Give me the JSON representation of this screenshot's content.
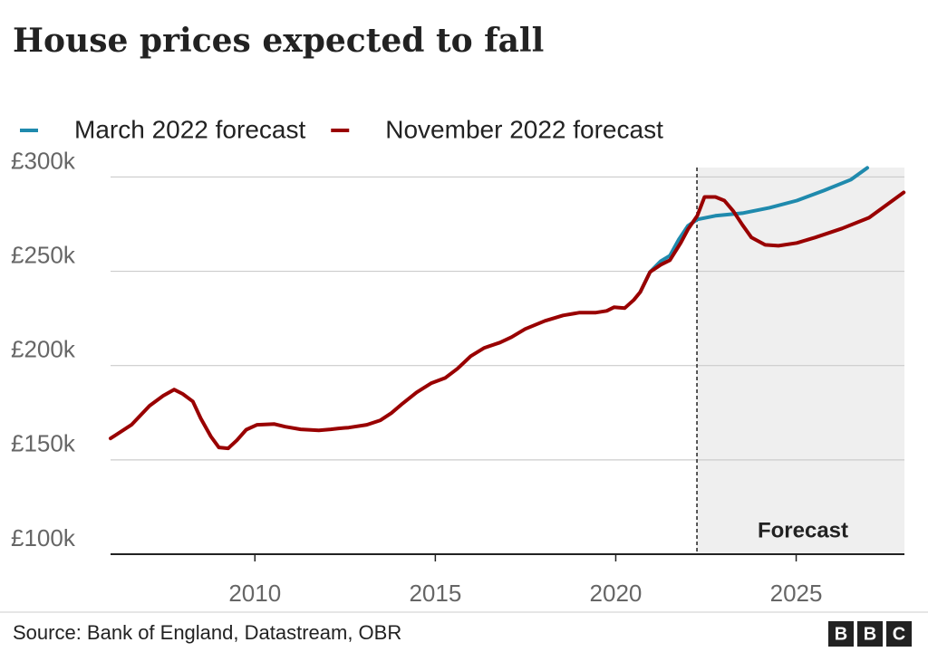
{
  "chart_data": {
    "type": "line",
    "title": "House prices expected to fall",
    "source": "Source: Bank of England, Datastream, OBR",
    "logo": [
      "B",
      "B",
      "C"
    ],
    "forecast_label": "Forecast",
    "forecast_start": 2022.25,
    "xlim": [
      2006,
      2028
    ],
    "xticks": [
      2010,
      2015,
      2020,
      2025
    ],
    "ylim": [
      100000,
      305000
    ],
    "yticks": [
      {
        "value": 100000,
        "label": "£100k"
      },
      {
        "value": 150000,
        "label": "£150k"
      },
      {
        "value": 200000,
        "label": "£200k"
      },
      {
        "value": 250000,
        "label": "£250k"
      },
      {
        "value": 300000,
        "label": "£300k"
      }
    ],
    "grid": true,
    "series": [
      {
        "name": "March 2022 forecast",
        "color": "#1f8aad",
        "x": [
          2020.68,
          2020.95,
          2021.25,
          2021.5,
          2021.75,
          2022.0,
          2022.26,
          2022.76,
          2023.51,
          2024.26,
          2025.02,
          2025.77,
          2026.52,
          2026.97
        ],
        "values": [
          239000,
          249600,
          255400,
          258300,
          266900,
          274100,
          277500,
          279400,
          280800,
          283700,
          287500,
          292800,
          298600,
          304800
        ]
      },
      {
        "name": "November 2022 forecast",
        "color": "#990000",
        "x": [
          2006.0,
          2006.58,
          2007.08,
          2007.46,
          2007.76,
          2008.0,
          2008.28,
          2008.5,
          2008.78,
          2009.0,
          2009.26,
          2009.5,
          2009.76,
          2010.06,
          2010.54,
          2010.84,
          2011.27,
          2011.77,
          2012.1,
          2012.32,
          2012.6,
          2013.1,
          2013.48,
          2013.78,
          2014.1,
          2014.48,
          2014.88,
          2015.28,
          2015.61,
          2015.98,
          2016.36,
          2016.79,
          2017.11,
          2017.49,
          2018.04,
          2018.54,
          2019.0,
          2019.45,
          2019.75,
          2019.95,
          2020.25,
          2020.5,
          2020.68,
          2020.95,
          2021.25,
          2021.5,
          2021.8,
          2022.0,
          2022.26,
          2022.46,
          2022.76,
          2023.01,
          2023.26,
          2023.51,
          2023.76,
          2024.14,
          2024.51,
          2025.02,
          2025.52,
          2026.27,
          2027.02,
          2027.98
        ],
        "values": [
          161400,
          168600,
          178700,
          184000,
          187300,
          185000,
          181000,
          172000,
          162400,
          156600,
          156100,
          160400,
          166000,
          168600,
          169000,
          167600,
          166200,
          165700,
          166200,
          166700,
          167100,
          168600,
          171000,
          174800,
          180000,
          185800,
          190600,
          193500,
          198300,
          205000,
          209400,
          212200,
          215100,
          219400,
          223700,
          226600,
          228100,
          228100,
          229000,
          230900,
          230500,
          234800,
          239000,
          249600,
          253500,
          255900,
          265000,
          272200,
          279400,
          289400,
          289400,
          287500,
          281800,
          274600,
          267900,
          264000,
          263500,
          265000,
          267900,
          272700,
          278400,
          291800
        ]
      }
    ]
  }
}
